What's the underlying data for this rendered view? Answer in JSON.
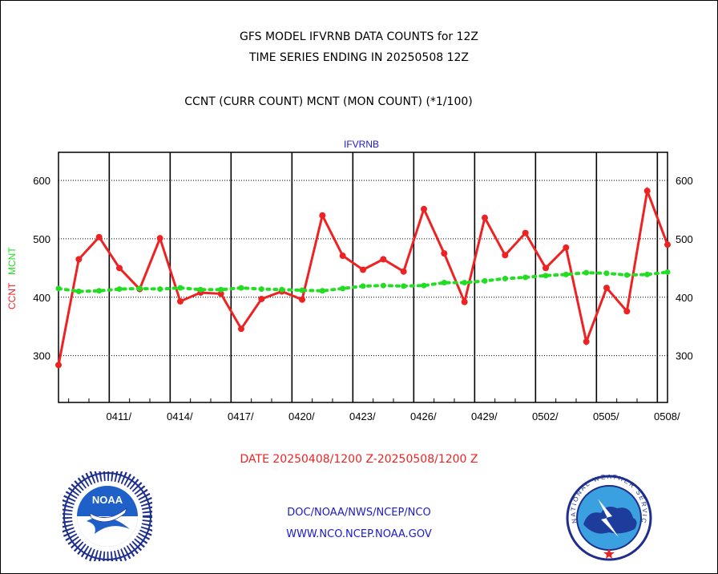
{
  "header": {
    "title_line1": "GFS MODEL IFVRNB DATA COUNTS for 12Z",
    "title_line2": "TIME SERIES ENDING IN 20250508 12Z",
    "subtitle": "CCNT (CURR COUNT) MCNT (MON COUNT) (*1/100)"
  },
  "footer": {
    "date_range": "DATE 20250408/1200 Z-20250508/1200 Z",
    "org_line": "DOC/NOAA/NWS/NCEP/NCO",
    "url_line": "WWW.NCO.NCEP.NOAA.GOV"
  },
  "logos": {
    "noaa_text": "NOAA",
    "nws_text": "NATIONAL WEATHER SERVICE"
  },
  "chart_data": {
    "type": "line",
    "panel_label": "IFVRNB",
    "ylabel_left_ccnt": "CCNT",
    "ylabel_left_mcnt": "MCNT",
    "ylim": [
      220,
      648
    ],
    "yticks": [
      300,
      400,
      500,
      600
    ],
    "xlim": [
      0,
      30
    ],
    "x_ticks": [
      {
        "pos": 2.5,
        "label": "0411/"
      },
      {
        "pos": 5.5,
        "label": "0414/"
      },
      {
        "pos": 8.5,
        "label": "0417/"
      },
      {
        "pos": 11.5,
        "label": "0420/"
      },
      {
        "pos": 14.5,
        "label": "0423/"
      },
      {
        "pos": 17.5,
        "label": "0426/"
      },
      {
        "pos": 20.5,
        "label": "0429/"
      },
      {
        "pos": 23.5,
        "label": "0502/"
      },
      {
        "pos": 26.5,
        "label": "0505/"
      },
      {
        "pos": 29.5,
        "label": "0508/"
      }
    ],
    "grid": true,
    "colors": {
      "ccnt": "#ee2222",
      "mcnt": "#22dd22",
      "title_blue": "#1a1acc",
      "date_red": "#ee2222"
    },
    "series": [
      {
        "name": "CCNT",
        "x": [
          0,
          1,
          2,
          3,
          4,
          5,
          6,
          7,
          8,
          9,
          10,
          11,
          12,
          13,
          14,
          15,
          16,
          17,
          18,
          19,
          20,
          21,
          22,
          23,
          24,
          25,
          26,
          27,
          28,
          29,
          30
        ],
        "values": [
          284,
          465,
          503,
          450,
          414,
          501,
          393,
          408,
          406,
          346,
          397,
          410,
          396,
          540,
          471,
          447,
          465,
          444,
          551,
          475,
          392,
          536,
          472,
          510,
          450,
          485,
          324,
          416,
          376,
          582,
          490
        ]
      },
      {
        "name": "MCNT",
        "x": [
          0,
          1,
          2,
          3,
          4,
          5,
          6,
          7,
          8,
          9,
          10,
          11,
          12,
          13,
          14,
          15,
          16,
          17,
          18,
          19,
          20,
          21,
          22,
          23,
          24,
          25,
          26,
          27,
          28,
          29,
          30
        ],
        "values": [
          415,
          410,
          411,
          414,
          415,
          414,
          416,
          413,
          413,
          416,
          414,
          413,
          412,
          411,
          415,
          419,
          420,
          419,
          420,
          425,
          425,
          428,
          432,
          434,
          437,
          439,
          442,
          441,
          438,
          439,
          443
        ]
      }
    ]
  }
}
